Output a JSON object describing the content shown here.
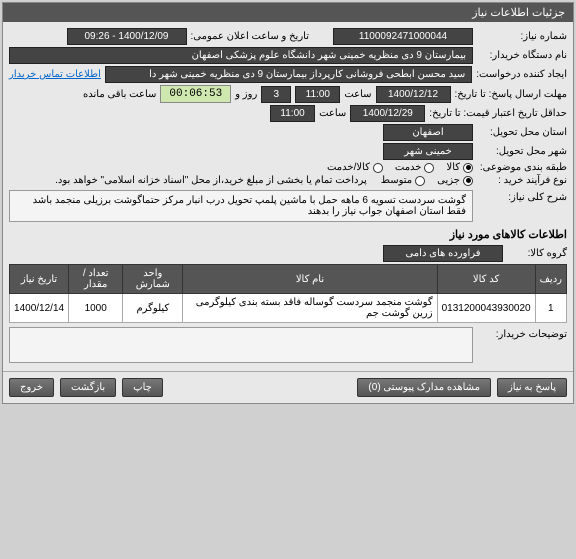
{
  "panel_title": "جزئیات اطلاعات نیاز",
  "need_number": {
    "label": "شماره نیاز:",
    "value": "1100092471000044"
  },
  "announce": {
    "label": "تاریخ و ساعت اعلان عمومی:",
    "value": "1400/12/09 - 09:26"
  },
  "buyer": {
    "label": "نام دستگاه خریدار:",
    "value": "بیمارستان 9 دی منظریه خمینی شهر دانشگاه علوم پزشکی اصفهان"
  },
  "requester": {
    "label": "ایجاد کننده درخواست:",
    "value": "سید محسن ابطحی فروشانی کارپرداز بیمارستان 9 دی منظریه خمینی شهر دا",
    "link": "اطلاعات تماس خریدار"
  },
  "deadline": {
    "label": "مهلت ارسال پاسخ: تا تاریخ:",
    "date": "1400/12/12",
    "time_label": "ساعت",
    "time": "11:00",
    "days": "3",
    "days_label": "روز و",
    "countdown": "00:06:53",
    "remain_label": "ساعت باقی مانده"
  },
  "validity": {
    "label": "حداقل تاریخ اعتبار قیمت: تا تاریخ:",
    "date": "1400/12/29",
    "time_label": "ساعت",
    "time": "11:00"
  },
  "province": {
    "label": "استان محل تحویل:",
    "value": "اصفهان"
  },
  "city": {
    "label": "شهر محل تحویل:",
    "value": "خمینی شهر"
  },
  "classification": {
    "label": "طبقه بندی موضوعی:",
    "options": [
      {
        "label": "کالا",
        "checked": true
      },
      {
        "label": "خدمت",
        "checked": false
      },
      {
        "label": "کالا/خدمت",
        "checked": false
      }
    ]
  },
  "purchase_type": {
    "label": "نوع فرآیند خرید :",
    "options": [
      {
        "label": "جزیی",
        "checked": true
      },
      {
        "label": "متوسط",
        "checked": false
      }
    ],
    "note": "پرداخت تمام یا بخشی از مبلغ خرید،از محل \"اسناد خزانه اسلامی\" خواهد بود."
  },
  "description": {
    "label": "شرح کلی نیاز:",
    "text": "گوشت سردست    تسویه 6 ماهه   حمل با ماشین پلمپ  تحویل درب انبار مرکز   حتماگوشت برزیلی منجمد باشد  فقط استان اصفهان جواب نیاز را بدهند"
  },
  "items_section": "اطلاعات کالاهای مورد نیاز",
  "group": {
    "label": "گروه کالا:",
    "value": "فراورده های دامی"
  },
  "table": {
    "columns": [
      "ردیف",
      "کد کالا",
      "نام کالا",
      "واحد شمارش",
      "تعداد / مقدار",
      "تاریخ نیاز"
    ],
    "rows": [
      [
        "1",
        "0131200043930020",
        "گوشت منجمد سردست گوساله فاقد بسته بندی کیلوگرمی زرین گوشت جم",
        "کیلوگرم",
        "1000",
        "1400/12/14"
      ]
    ]
  },
  "buyer_notes": {
    "label": "توضیحات خریدار:",
    "value": ""
  },
  "footer": {
    "reply": "پاسخ به نیاز",
    "attachments": "مشاهده مدارک پیوستی (0)",
    "print": "چاپ",
    "back": "بازگشت",
    "exit": "خروج"
  }
}
